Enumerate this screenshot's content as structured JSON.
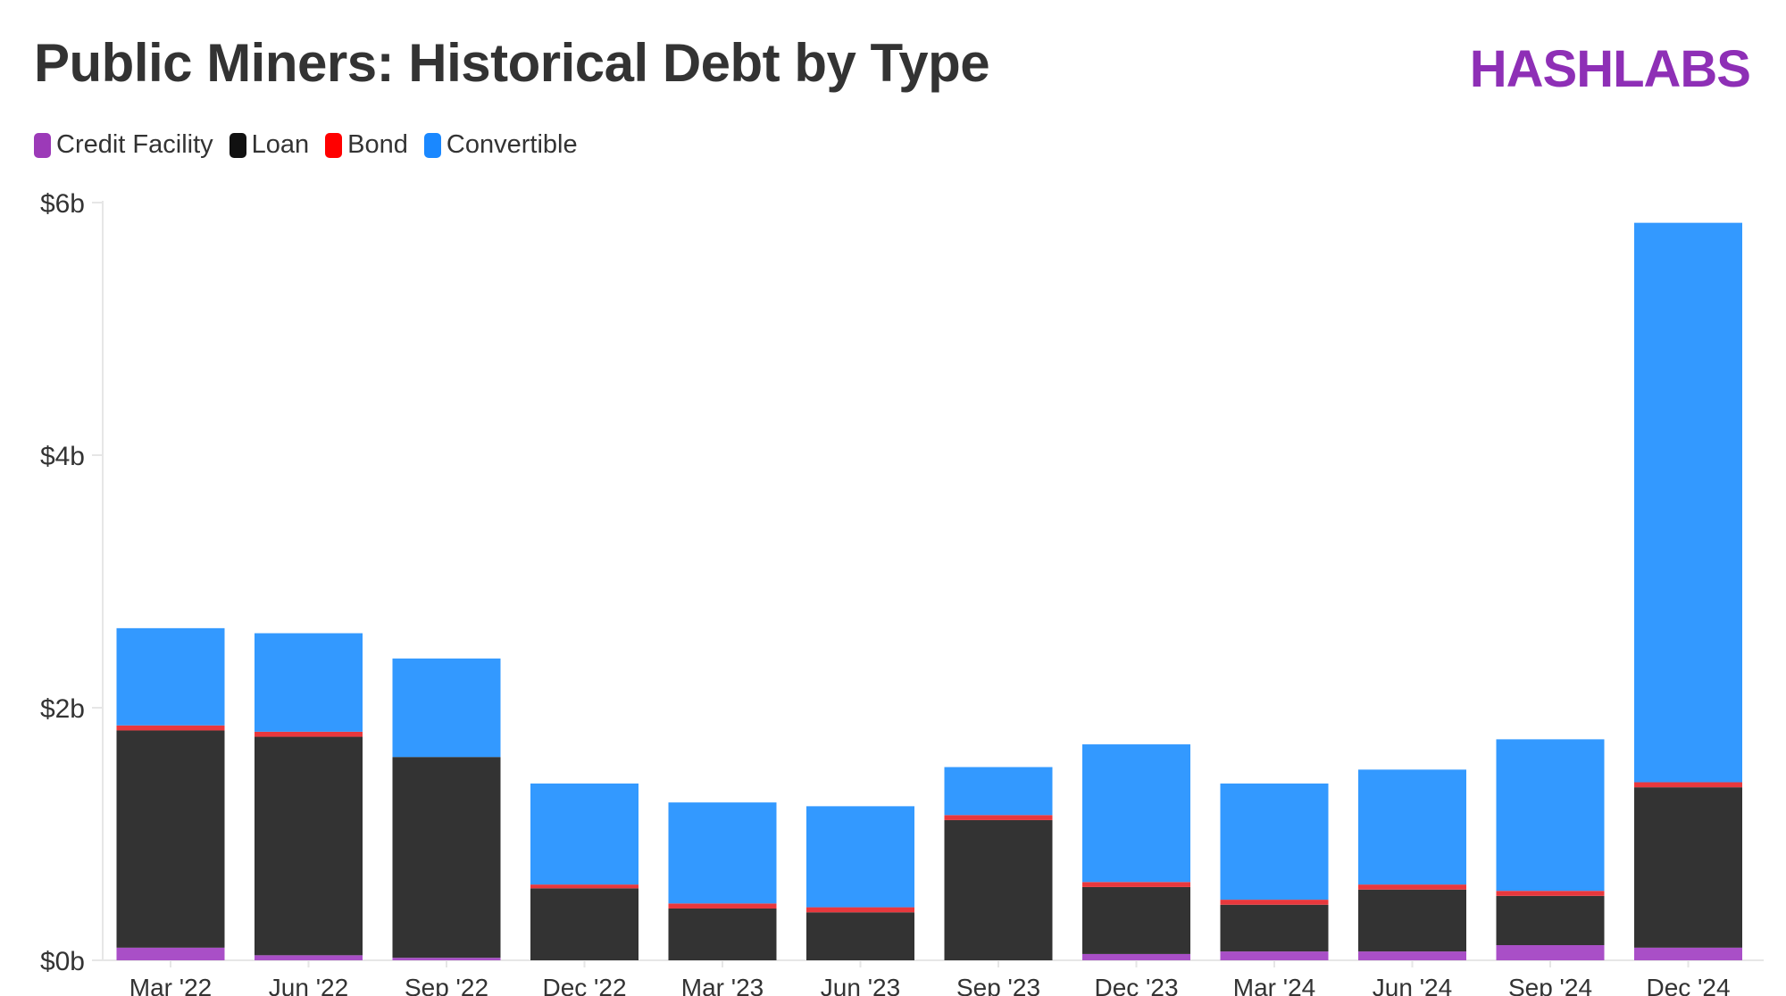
{
  "header": {
    "title": "Public Miners: Historical Debt by Type",
    "logo": "HASHLABS"
  },
  "colors": {
    "credit_facility": "#a94fc7",
    "loan": "#333333",
    "bond": "#e8383d",
    "convertible": "#3399ff",
    "text": "#333333",
    "axis": "#e6e6e6",
    "logo": "#8e2fb6"
  },
  "legend": {
    "items": [
      {
        "label": "Credit Facility",
        "color": "#9c3ab8"
      },
      {
        "label": "Loan",
        "color": "#111111"
      },
      {
        "label": "Bond",
        "color": "#ff0000"
      },
      {
        "label": "Convertible",
        "color": "#1a88ff"
      }
    ]
  },
  "chart_data": {
    "type": "bar",
    "stacked": true,
    "title": "Public Miners: Historical Debt by Type",
    "xlabel": "",
    "ylabel": "",
    "ylim": [
      0,
      6
    ],
    "yticks": [
      0,
      2,
      4,
      6
    ],
    "ytick_labels": [
      "$0b",
      "$2b",
      "$4b",
      "$6b"
    ],
    "unit": "$b",
    "categories": [
      "Mar '22",
      "Jun '22",
      "Sep '22",
      "Dec '22",
      "Mar '23",
      "Jun '23",
      "Sep '23",
      "Dec '23",
      "Mar '24",
      "Jun '24",
      "Sep '24",
      "Dec '24"
    ],
    "series": [
      {
        "name": "Credit Facility",
        "values": [
          0.1,
          0.04,
          0.02,
          0.0,
          0.0,
          0.0,
          0.0,
          0.05,
          0.07,
          0.07,
          0.12,
          0.1
        ]
      },
      {
        "name": "Loan",
        "values": [
          1.72,
          1.73,
          1.59,
          0.57,
          0.41,
          0.38,
          1.11,
          0.53,
          0.37,
          0.49,
          0.39,
          1.27
        ]
      },
      {
        "name": "Bond",
        "values": [
          0.04,
          0.04,
          0.0,
          0.03,
          0.04,
          0.04,
          0.04,
          0.04,
          0.04,
          0.04,
          0.04,
          0.04
        ]
      },
      {
        "name": "Convertible",
        "values": [
          0.77,
          0.78,
          0.78,
          0.8,
          0.8,
          0.8,
          0.38,
          1.09,
          0.92,
          0.91,
          1.2,
          4.43
        ]
      }
    ],
    "grid": false,
    "legend_position": "top-left"
  }
}
